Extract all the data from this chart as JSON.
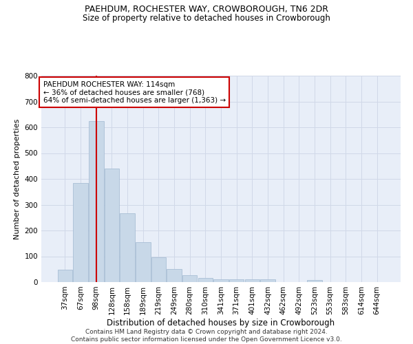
{
  "title1": "PAEHDUM, ROCHESTER WAY, CROWBOROUGH, TN6 2DR",
  "title2": "Size of property relative to detached houses in Crowborough",
  "xlabel": "Distribution of detached houses by size in Crowborough",
  "ylabel": "Number of detached properties",
  "categories": [
    "37sqm",
    "67sqm",
    "98sqm",
    "128sqm",
    "158sqm",
    "189sqm",
    "219sqm",
    "249sqm",
    "280sqm",
    "310sqm",
    "341sqm",
    "371sqm",
    "401sqm",
    "432sqm",
    "462sqm",
    "492sqm",
    "523sqm",
    "553sqm",
    "583sqm",
    "614sqm",
    "644sqm"
  ],
  "values": [
    47,
    385,
    625,
    440,
    268,
    155,
    95,
    52,
    27,
    16,
    12,
    12,
    12,
    10,
    0,
    0,
    8,
    0,
    0,
    0,
    0
  ],
  "bar_color": "#c8d8e8",
  "bar_edge_color": "#a0b8d0",
  "vline_x": 2,
  "vline_color": "#cc0000",
  "annotation_text": "PAEHDUM ROCHESTER WAY: 114sqm\n← 36% of detached houses are smaller (768)\n64% of semi-detached houses are larger (1,363) →",
  "annotation_box_color": "#ffffff",
  "annotation_box_edge": "#cc0000",
  "ylim": [
    0,
    800
  ],
  "yticks": [
    0,
    100,
    200,
    300,
    400,
    500,
    600,
    700,
    800
  ],
  "grid_color": "#d0d8e8",
  "background_color": "#e8eef8",
  "footer": "Contains HM Land Registry data © Crown copyright and database right 2024.\nContains public sector information licensed under the Open Government Licence v3.0.",
  "title1_fontsize": 9,
  "title2_fontsize": 8.5,
  "xlabel_fontsize": 8.5,
  "ylabel_fontsize": 8,
  "tick_fontsize": 7.5,
  "footer_fontsize": 6.5,
  "annotation_fontsize": 7.5
}
